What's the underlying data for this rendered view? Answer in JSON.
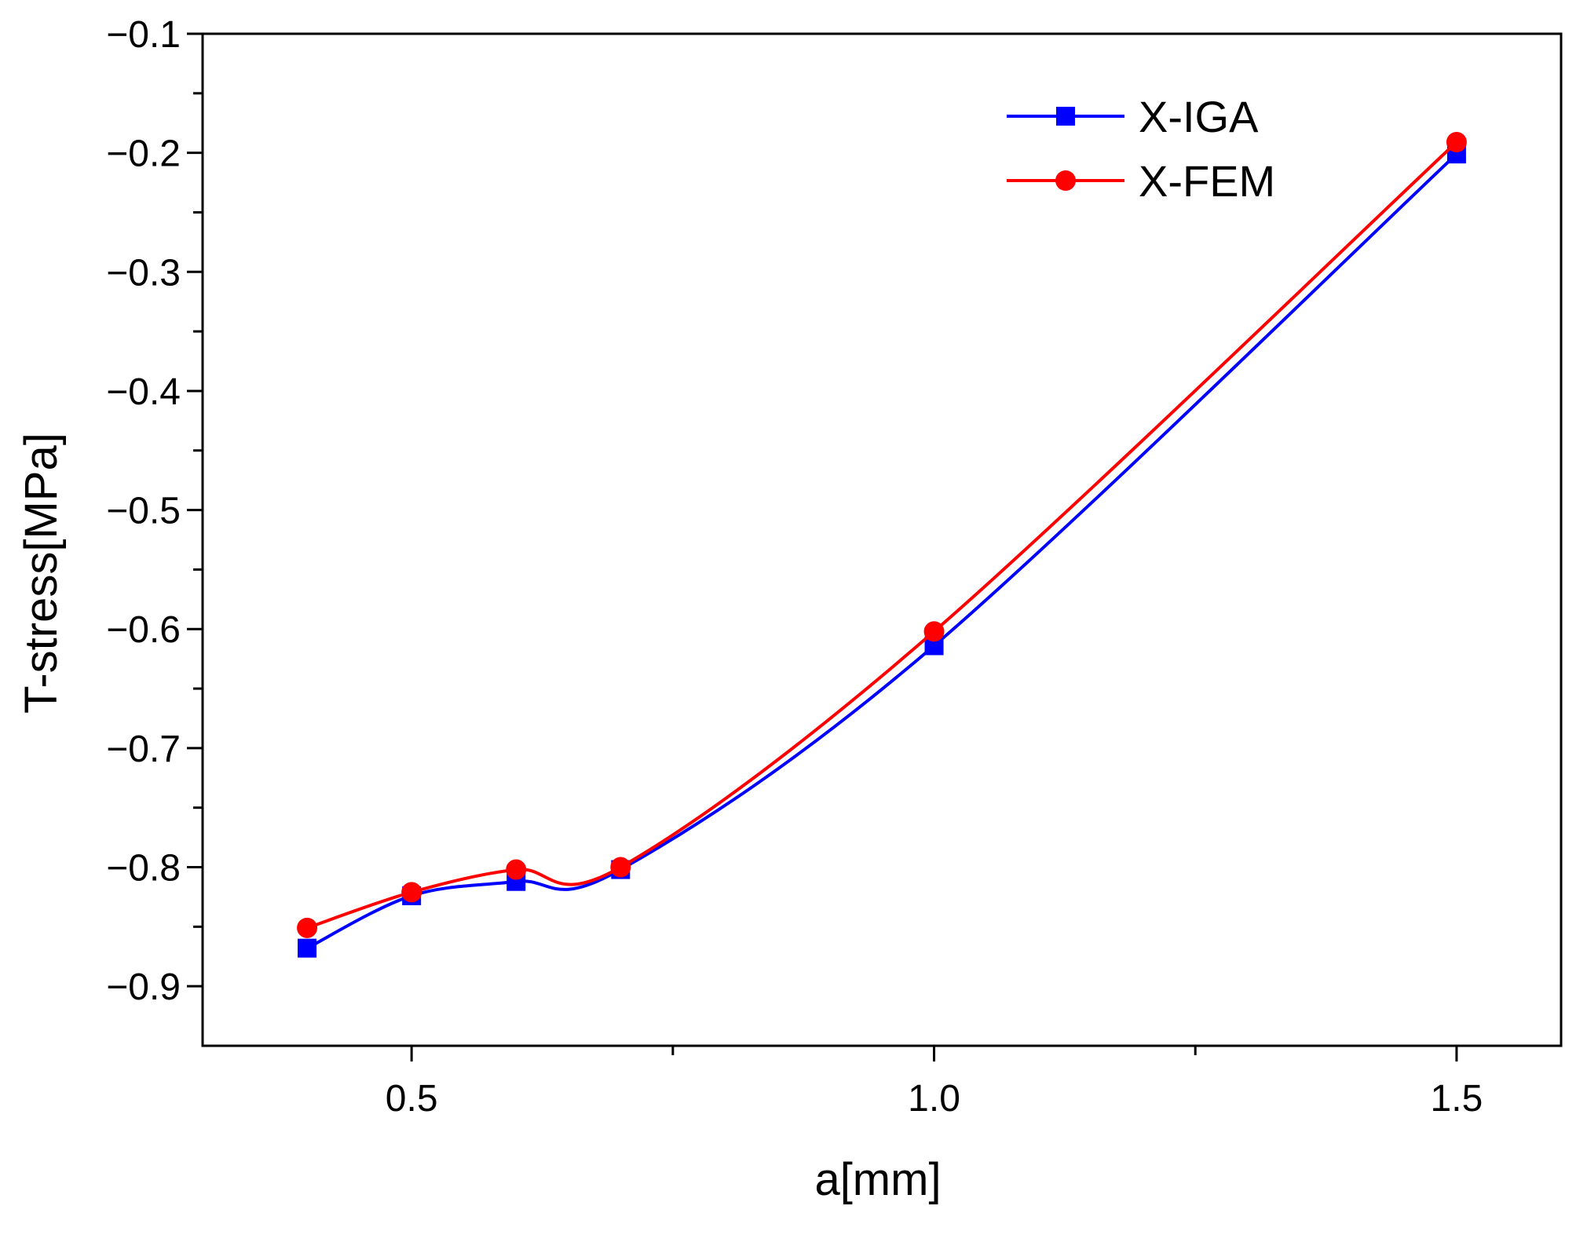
{
  "chart_data": {
    "type": "line",
    "title": "",
    "xlabel": "a[mm]",
    "ylabel": "T-stress[MPa]",
    "xlim": [
      0.3,
      1.6
    ],
    "ylim": [
      -0.95,
      -0.1
    ],
    "x_ticks": [
      0.5,
      1.0,
      1.5
    ],
    "x_tick_labels": [
      "0.5",
      "1.0",
      "1.5"
    ],
    "x_minor_ticks": [
      0.75,
      1.25
    ],
    "y_ticks": [
      -0.1,
      -0.2,
      -0.3,
      -0.4,
      -0.5,
      -0.6,
      -0.7,
      -0.8,
      -0.9
    ],
    "y_tick_labels": [
      "−0.1",
      "−0.2",
      "−0.3",
      "−0.4",
      "−0.5",
      "−0.6",
      "−0.7",
      "−0.8",
      "−0.9"
    ],
    "y_minor_ticks": [
      -0.15,
      -0.25,
      -0.35,
      -0.45,
      -0.55,
      -0.65,
      -0.75,
      -0.85
    ],
    "grid": false,
    "legend_position": "top-right",
    "series": [
      {
        "name": "X-IGA",
        "color": "#0000ff",
        "marker": "square",
        "x": [
          0.4,
          0.5,
          0.6,
          0.7,
          1.0,
          1.5
        ],
        "values": [
          -0.868,
          -0.824,
          -0.812,
          -0.802,
          -0.614,
          -0.201
        ]
      },
      {
        "name": "X-FEM",
        "color": "#ff0000",
        "marker": "circle",
        "x": [
          0.4,
          0.5,
          0.6,
          0.7,
          1.0,
          1.5
        ],
        "values": [
          -0.851,
          -0.821,
          -0.802,
          -0.8,
          -0.602,
          -0.191
        ]
      }
    ]
  }
}
